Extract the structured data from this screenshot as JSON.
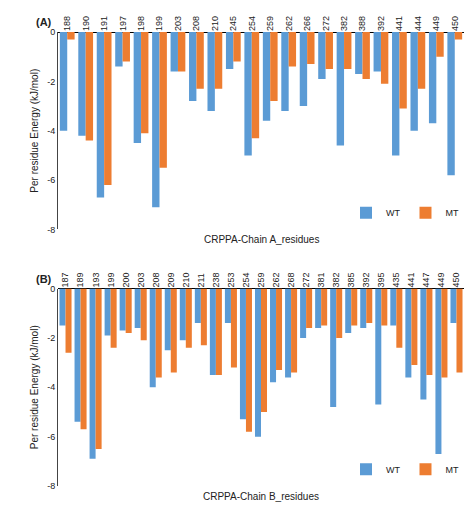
{
  "chart_data": [
    {
      "type": "bar",
      "title": "(A)",
      "xlabel": "CRPPA-Chain A_residues",
      "ylabel": "Per residue Energy (kJ/mol)",
      "categories": [
        "188",
        "190",
        "191",
        "197",
        "198",
        "199",
        "203",
        "208",
        "210",
        "245",
        "254",
        "259",
        "262",
        "266",
        "272",
        "382",
        "388",
        "392",
        "441",
        "444",
        "449",
        "450"
      ],
      "series": [
        {
          "name": "WT",
          "color": "#5B9BD5",
          "values": [
            -4.0,
            -4.2,
            -6.7,
            -1.4,
            -4.5,
            -7.1,
            -1.6,
            -2.8,
            -3.2,
            -1.5,
            -5.0,
            -3.6,
            -3.2,
            -3.0,
            -1.9,
            -4.6,
            -1.7,
            -1.6,
            -5.0,
            -4.0,
            -3.7,
            -5.8
          ]
        },
        {
          "name": "MT",
          "color": "#ED7D31",
          "values": [
            -0.3,
            -4.4,
            -6.2,
            -1.2,
            -4.1,
            -5.5,
            -1.6,
            -2.3,
            -2.3,
            -1.2,
            -4.3,
            -2.8,
            -1.4,
            -1.3,
            -1.5,
            -1.5,
            -1.9,
            -2.1,
            -3.1,
            -2.3,
            -1.0,
            -0.3
          ]
        }
      ],
      "ylim": [
        -8,
        0
      ],
      "yticks": [
        0,
        -2,
        -4,
        -6,
        -8
      ],
      "grid": false,
      "legend": "lower right"
    },
    {
      "type": "bar",
      "title": "(B)",
      "xlabel": "CRPPA-Chain B_residues",
      "ylabel": "Per residue Energy (kJ/mol)",
      "categories": [
        "187",
        "189",
        "193",
        "199",
        "200",
        "203",
        "208",
        "209",
        "210",
        "211",
        "238",
        "253",
        "254",
        "259",
        "262",
        "268",
        "272",
        "381",
        "382",
        "385",
        "392",
        "395",
        "435",
        "441",
        "447",
        "449",
        "450"
      ],
      "series": [
        {
          "name": "WT",
          "color": "#5B9BD5",
          "values": [
            -1.5,
            -5.4,
            -6.9,
            -1.9,
            -1.7,
            -1.6,
            -4.0,
            -2.5,
            -2.1,
            -1.4,
            -3.5,
            -1.4,
            -5.3,
            -6.0,
            -3.8,
            -3.6,
            -2.0,
            -1.6,
            -4.8,
            -1.8,
            -1.6,
            -4.7,
            -1.5,
            -3.6,
            -4.5,
            -6.7,
            -1.4
          ]
        },
        {
          "name": "MT",
          "color": "#ED7D31",
          "values": [
            -2.6,
            -5.7,
            -6.5,
            -2.4,
            -1.8,
            -2.1,
            -3.6,
            -3.4,
            -2.4,
            -2.3,
            -3.5,
            -3.2,
            -5.8,
            -5.0,
            -3.3,
            -3.4,
            -1.6,
            -1.5,
            -2.0,
            -1.5,
            -1.4,
            -1.5,
            -2.4,
            -3.1,
            -3.5,
            -3.6,
            -3.4
          ]
        }
      ],
      "ylim": [
        -8,
        0
      ],
      "yticks": [
        0,
        -2,
        -4,
        -6,
        -8
      ],
      "grid": false,
      "legend": "lower right"
    }
  ]
}
